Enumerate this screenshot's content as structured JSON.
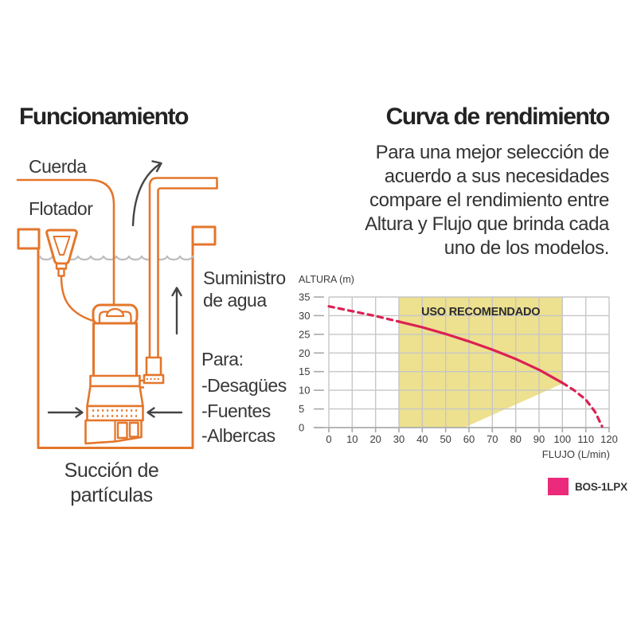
{
  "colors": {
    "orange": "#E4762B",
    "ink": "#232323",
    "text": "#373737",
    "arrow": "#454545",
    "water": "#BDBDBD",
    "grid": "#C6C6C6",
    "axis": "#A8A8A8"
  },
  "left_panel": {
    "title": "Funcionamiento",
    "label_rope": "Cuerda",
    "label_float": "Flotador",
    "label_supply": [
      "Suministro",
      "de agua"
    ],
    "uses_heading": "Para:",
    "uses": [
      "-Desagües",
      "-Fuentes",
      "-Albercas"
    ],
    "label_suction": [
      "Succión de",
      "partículas"
    ]
  },
  "right_panel": {
    "title": "Curva de rendimiento",
    "description_lines": [
      "Para una mejor selección de",
      "acuerdo a sus necesidades",
      "compare el rendimiento entre",
      "Altura y Flujo que brinda cada",
      "uno de los modelos."
    ]
  },
  "chart_data": {
    "type": "line",
    "title": "",
    "xlabel": "FLUJO (L/min)",
    "ylabel": "ALTURA (m)",
    "xlim": [
      0,
      120
    ],
    "ylim": [
      0,
      35
    ],
    "xticks": [
      0,
      10,
      20,
      30,
      40,
      50,
      60,
      70,
      80,
      90,
      100,
      110,
      120
    ],
    "yticks": [
      0,
      5,
      10,
      15,
      20,
      25,
      30,
      35
    ],
    "grid": true,
    "recommended_region": {
      "label": "USO RECOMENDADO",
      "color": "#EDE08F",
      "polygon": [
        [
          30,
          0
        ],
        [
          30,
          35
        ],
        [
          100,
          35
        ],
        [
          100,
          11.8
        ],
        [
          58,
          0
        ]
      ]
    },
    "series": [
      {
        "name": "BOS-1LPX",
        "color": "#DB2153",
        "x": [
          0,
          10,
          20,
          30,
          40,
          50,
          60,
          70,
          80,
          90,
          100,
          105,
          110,
          114,
          117
        ],
        "y": [
          32.5,
          31.2,
          29.9,
          28.4,
          26.9,
          25.1,
          23.1,
          20.9,
          18.4,
          15.5,
          12,
          10,
          7.5,
          4.2,
          0.3
        ],
        "solid_between_x": [
          30,
          100
        ],
        "style_outside_range": "dashed"
      }
    ],
    "legend": [
      {
        "label": "BOS-1LPX",
        "color": "#EB2A7B"
      }
    ],
    "legend_position": "bottom-right"
  }
}
